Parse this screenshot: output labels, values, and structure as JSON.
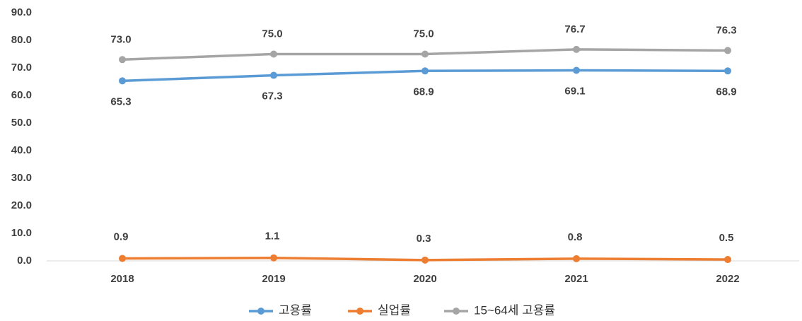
{
  "chart_data": {
    "type": "line",
    "categories": [
      "2018",
      "2019",
      "2020",
      "2021",
      "2022"
    ],
    "series": [
      {
        "name": "고용률",
        "color": "#5b9bd5",
        "values": [
          65.3,
          67.3,
          68.9,
          69.1,
          68.9
        ],
        "value_labels": [
          "65.3",
          "67.3",
          "68.9",
          "69.1",
          "68.9"
        ]
      },
      {
        "name": "실업률",
        "color": "#ed7d31",
        "values": [
          0.9,
          1.1,
          0.3,
          0.8,
          0.5
        ],
        "value_labels": [
          "0.9",
          "1.1",
          "0.3",
          "0.8",
          "0.5"
        ]
      },
      {
        "name": "15~64세 고용률",
        "color": "#a5a5a5",
        "values": [
          73.0,
          75.0,
          75.0,
          76.7,
          76.3
        ],
        "value_labels": [
          "73.0",
          "75.0",
          "75.0",
          "76.7",
          "76.3"
        ]
      }
    ],
    "ylim": [
      0,
      90
    ],
    "yticks": [
      {
        "value": 0,
        "label": "0.0"
      },
      {
        "value": 10,
        "label": "10.0"
      },
      {
        "value": 20,
        "label": "20.0"
      },
      {
        "value": 30,
        "label": "30.0"
      },
      {
        "value": 40,
        "label": "40.0"
      },
      {
        "value": 50,
        "label": "50.0"
      },
      {
        "value": 60,
        "label": "60.0"
      },
      {
        "value": 70,
        "label": "70.0"
      },
      {
        "value": 80,
        "label": "80.0"
      },
      {
        "value": 90,
        "label": "90.0"
      }
    ],
    "legend": "bottom"
  }
}
